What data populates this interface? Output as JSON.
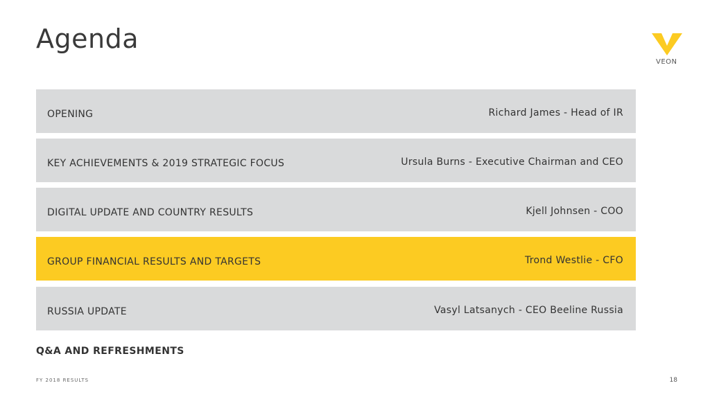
{
  "title": "Agenda",
  "logo": {
    "text": "VEON",
    "color": "#fccb22"
  },
  "agenda": [
    {
      "topic": "OPENING",
      "speaker": "Richard James - Head of IR",
      "highlighted": false
    },
    {
      "topic": "KEY ACHIEVEMENTS & 2019 STRATEGIC FOCUS",
      "speaker": "Ursula Burns - Executive Chairman and CEO",
      "highlighted": false
    },
    {
      "topic": "DIGITAL UPDATE AND COUNTRY RESULTS",
      "speaker": "Kjell Johnsen - COO",
      "highlighted": false
    },
    {
      "topic": "GROUP FINANCIAL RESULTS AND TARGETS",
      "speaker": "Trond Westlie - CFO",
      "highlighted": true
    },
    {
      "topic": "RUSSIA UPDATE",
      "speaker": "Vasyl Latsanych - CEO Beeline Russia",
      "highlighted": false
    }
  ],
  "closing": "Q&A AND REFRESHMENTS",
  "footer": {
    "label": "FY 2018 RESULTS",
    "page": "18"
  },
  "colors": {
    "row": "#d9dadb",
    "highlight": "#fccb22"
  }
}
